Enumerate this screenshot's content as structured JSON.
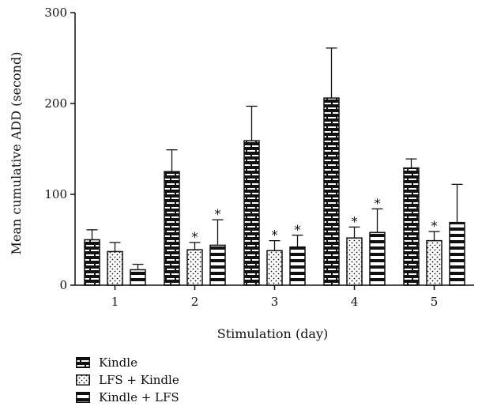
{
  "chart_data": {
    "type": "bar",
    "title": "",
    "xlabel": "Stimulation (day)",
    "ylabel": "Mean cumulative ADD (second)",
    "categories": [
      "1",
      "2",
      "3",
      "4",
      "5"
    ],
    "ylim": [
      0,
      300
    ],
    "yticks": [
      0,
      100,
      200,
      300
    ],
    "grid": false,
    "legend_position": "bottom-left",
    "significance_marker": "*",
    "series": [
      {
        "name": "Kindle",
        "pattern": "brick",
        "values": [
          50,
          125,
          159,
          206,
          129
        ],
        "errors": [
          11,
          24,
          38,
          55,
          10
        ],
        "significant": [
          false,
          false,
          false,
          false,
          false
        ]
      },
      {
        "name": "LFS + Kindle",
        "pattern": "dots",
        "values": [
          37,
          39,
          38,
          52,
          49
        ],
        "errors": [
          10,
          8,
          11,
          12,
          10
        ],
        "significant": [
          false,
          true,
          true,
          true,
          true
        ]
      },
      {
        "name": "Kindle + LFS",
        "pattern": "horizontal-stripes",
        "values": [
          17,
          44,
          42,
          58,
          69
        ],
        "errors": [
          6,
          28,
          13,
          26,
          42
        ],
        "significant": [
          false,
          true,
          true,
          true,
          false
        ]
      }
    ]
  }
}
